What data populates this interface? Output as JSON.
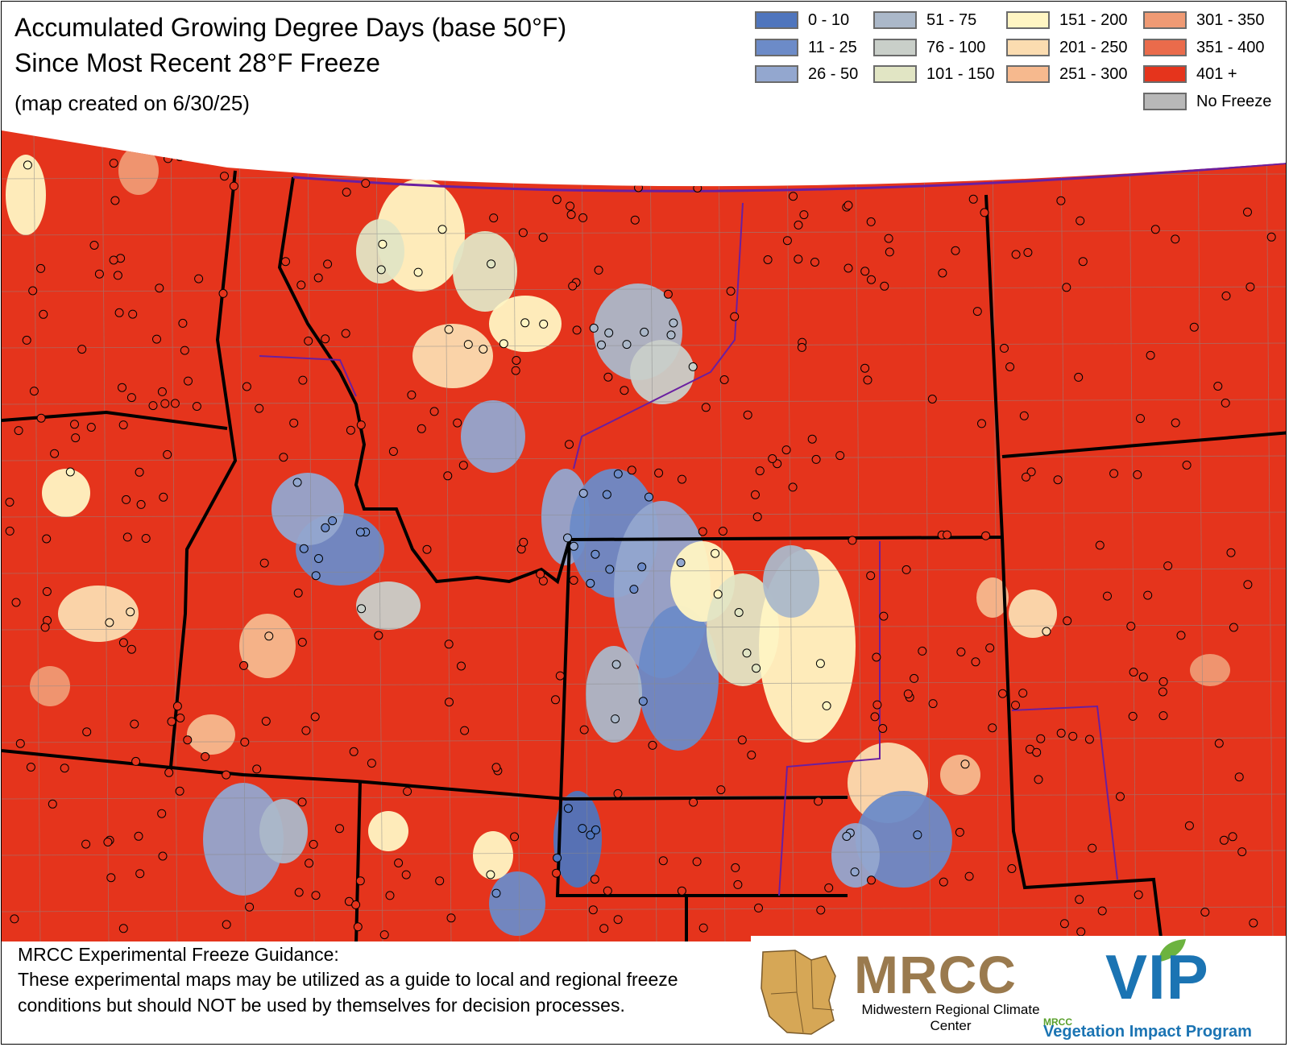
{
  "title": {
    "line1": "Accumulated Growing Degree Days (base 50°F)",
    "line2": "Since Most Recent 28°F Freeze",
    "subtitle": "(map created on 6/30/25)"
  },
  "legend": {
    "items": [
      {
        "label": "0 - 10",
        "color": "#4f75bd"
      },
      {
        "label": "11 - 25",
        "color": "#6c8bc8"
      },
      {
        "label": "26 - 50",
        "color": "#93a7cf"
      },
      {
        "label": "51 - 75",
        "color": "#abb8c9"
      },
      {
        "label": "76 - 100",
        "color": "#c9cfc9"
      },
      {
        "label": "101 - 150",
        "color": "#e1e5c4"
      },
      {
        "label": "151 - 200",
        "color": "#fff5c3"
      },
      {
        "label": "201 - 250",
        "color": "#fbdcb0"
      },
      {
        "label": "251 - 300",
        "color": "#f6b98e"
      },
      {
        "label": "301 - 350",
        "color": "#ef9a74"
      },
      {
        "label": "351 - 400",
        "color": "#ea6b4b"
      },
      {
        "label": "401 +",
        "color": "#e5341c"
      }
    ],
    "no_freeze": {
      "label": "No Freeze",
      "color": "#b8b8b8"
    }
  },
  "disclaimer": {
    "heading": "MRCC Experimental Freeze Guidance:",
    "body": "These experimental maps may be utilized as a guide to local and regional freeze conditions but should NOT be used by themselves for decision processes."
  },
  "logos": {
    "mrcc": "MRCC",
    "mrcc_sub": "Midwestern Regional Climate Center",
    "vip": "VIP",
    "vip_mrcc": "MRCC",
    "vip_sub": "Vegetation Impact Program"
  }
}
